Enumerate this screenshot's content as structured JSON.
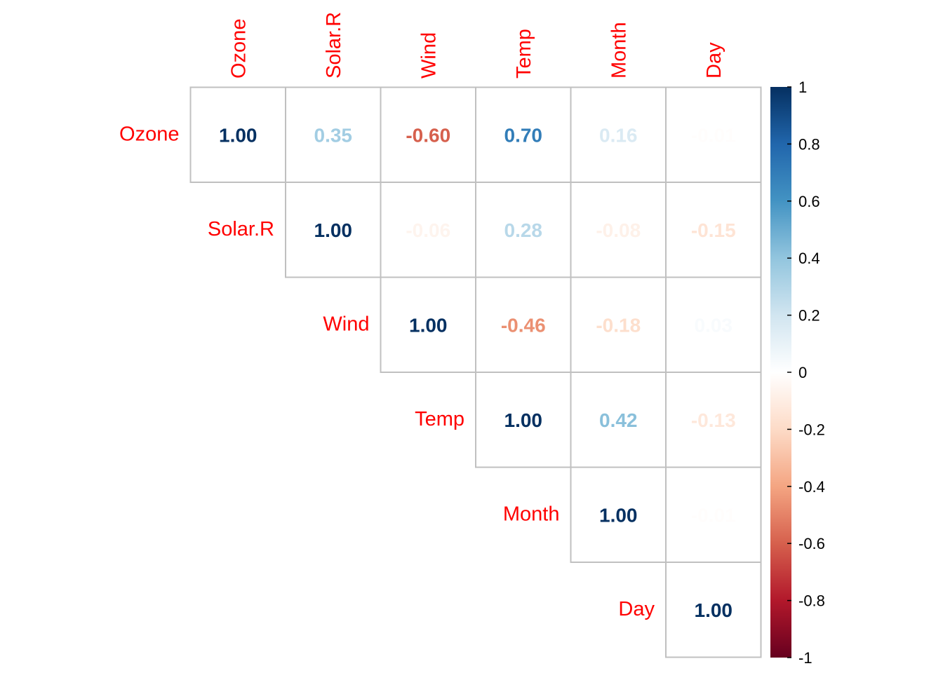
{
  "chart_data": {
    "type": "heatmap",
    "style": "upper-triangle correlation matrix with coefficient numbers",
    "variables": [
      "Ozone",
      "Solar.R",
      "Wind",
      "Temp",
      "Month",
      "Day"
    ],
    "matrix": [
      [
        1.0,
        0.35,
        -0.6,
        0.7,
        0.16,
        -0.01
      ],
      [
        null,
        1.0,
        -0.06,
        0.28,
        -0.08,
        -0.15
      ],
      [
        null,
        null,
        1.0,
        -0.46,
        -0.18,
        0.03
      ],
      [
        null,
        null,
        null,
        1.0,
        0.42,
        -0.13
      ],
      [
        null,
        null,
        null,
        null,
        1.0,
        -0.01
      ],
      [
        null,
        null,
        null,
        null,
        null,
        1.0
      ]
    ],
    "value_labels": [
      [
        "1.00",
        "0.35",
        "-0.60",
        "0.70",
        "0.16",
        "-0.01"
      ],
      [
        "",
        "1.00",
        "-0.06",
        "0.28",
        "-0.08",
        "-0.15"
      ],
      [
        "",
        "",
        "1.00",
        "-0.46",
        "-0.18",
        "0.03"
      ],
      [
        "",
        "",
        "",
        "1.00",
        "0.42",
        "-0.13"
      ],
      [
        "",
        "",
        "",
        "",
        "1.00",
        "-0.01"
      ],
      [
        "",
        "",
        "",
        "",
        "",
        "1.00"
      ]
    ],
    "label_color": "#ff0000",
    "grid_color": "#c0c0c0",
    "color_scale": {
      "range": [
        -1,
        1
      ],
      "ticks": [
        1,
        0.8,
        0.6,
        0.4,
        0.2,
        0,
        -0.2,
        -0.4,
        -0.6,
        -0.8,
        -1
      ],
      "tick_labels": [
        "1",
        "0.8",
        "0.6",
        "0.4",
        "0.2",
        "0",
        "-0.2",
        "-0.4",
        "-0.6",
        "-0.8",
        "-1"
      ],
      "colors": [
        "#67001F",
        "#B2182B",
        "#D6604D",
        "#F4A582",
        "#FDDBC7",
        "#FFFFFF",
        "#D1E5F0",
        "#92C5DE",
        "#4393C3",
        "#2166AC",
        "#053061"
      ],
      "legend_position": "right"
    }
  }
}
